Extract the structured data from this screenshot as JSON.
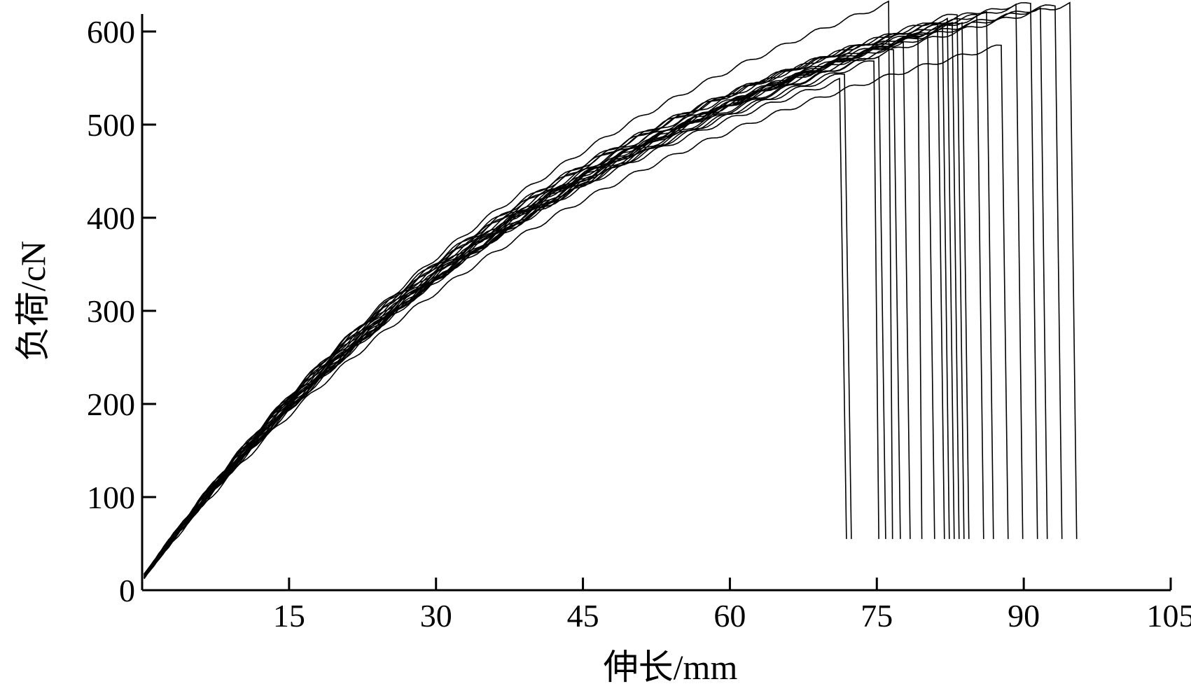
{
  "chart_data": {
    "type": "line",
    "title": "",
    "xlabel": "伸长/mm",
    "ylabel": "负荷/cN",
    "xlim": [
      0,
      105
    ],
    "ylim": [
      0,
      600
    ],
    "xticks": [
      15,
      30,
      45,
      60,
      75,
      90,
      105
    ],
    "yticks": [
      0,
      100,
      200,
      300,
      400,
      500,
      600
    ],
    "grid": false,
    "legend": "none",
    "color": "#000000",
    "series_note": "multiple tensile load–elongation curves; each rises and drops sharply at its break elongation",
    "series": [
      {
        "break_x": 71.5,
        "peak_y": 548,
        "drop_to": 55
      },
      {
        "break_x": 72.0,
        "peak_y": 556,
        "drop_to": 55
      },
      {
        "break_x": 74.8,
        "peak_y": 569,
        "drop_to": 55
      },
      {
        "break_x": 75.5,
        "peak_y": 576,
        "drop_to": 55
      },
      {
        "break_x": 76.2,
        "peak_y": 630,
        "drop_to": 55
      },
      {
        "break_x": 77.0,
        "peak_y": 582,
        "drop_to": 55
      },
      {
        "break_x": 78.0,
        "peak_y": 590,
        "drop_to": 55
      },
      {
        "break_x": 79.2,
        "peak_y": 596,
        "drop_to": 55
      },
      {
        "break_x": 80.5,
        "peak_y": 600,
        "drop_to": 55
      },
      {
        "break_x": 81.5,
        "peak_y": 607,
        "drop_to": 55
      },
      {
        "break_x": 82.0,
        "peak_y": 611,
        "drop_to": 55
      },
      {
        "break_x": 82.5,
        "peak_y": 615,
        "drop_to": 55
      },
      {
        "break_x": 83.0,
        "peak_y": 608,
        "drop_to": 55
      },
      {
        "break_x": 83.5,
        "peak_y": 620,
        "drop_to": 55
      },
      {
        "break_x": 84.0,
        "peak_y": 612,
        "drop_to": 55
      },
      {
        "break_x": 85.5,
        "peak_y": 618,
        "drop_to": 55
      },
      {
        "break_x": 86.5,
        "peak_y": 624,
        "drop_to": 55
      },
      {
        "break_x": 88.0,
        "peak_y": 585,
        "drop_to": 55
      },
      {
        "break_x": 89.5,
        "peak_y": 630,
        "drop_to": 55
      },
      {
        "break_x": 91.0,
        "peak_y": 632,
        "drop_to": 55
      },
      {
        "break_x": 92.0,
        "peak_y": 626,
        "drop_to": 55
      },
      {
        "break_x": 93.5,
        "peak_y": 629,
        "drop_to": 55
      },
      {
        "break_x": 95.0,
        "peak_y": 630,
        "drop_to": 55
      }
    ]
  }
}
